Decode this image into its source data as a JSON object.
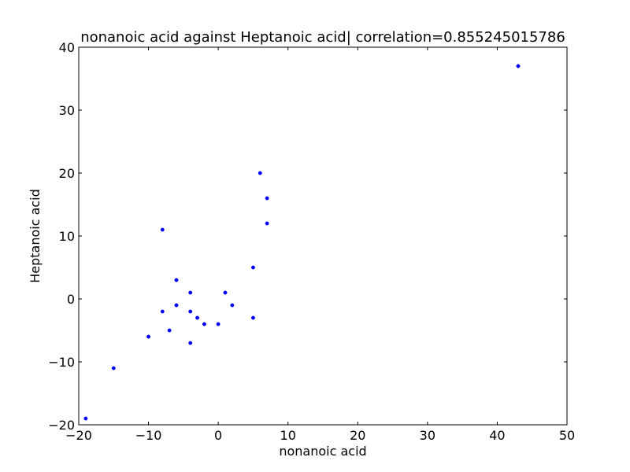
{
  "chart_data": {
    "type": "scatter",
    "title": "nonanoic acid against Heptanoic acid| correlation=0.855245015786",
    "xlabel": "nonanoic acid",
    "ylabel": "Heptanoic acid",
    "xlim": [
      -20,
      50
    ],
    "ylim": [
      -20,
      40
    ],
    "xticks": [
      -20,
      -10,
      0,
      10,
      20,
      30,
      40,
      50
    ],
    "yticks": [
      -20,
      -10,
      0,
      10,
      20,
      30,
      40
    ],
    "xtick_labels": [
      "−20",
      "−10",
      "0",
      "10",
      "20",
      "30",
      "40",
      "50"
    ],
    "ytick_labels": [
      "−20",
      "−10",
      "0",
      "10",
      "20",
      "30",
      "40"
    ],
    "grid": false,
    "marker_color": "#0000ff",
    "points": [
      {
        "x": -19,
        "y": -19
      },
      {
        "x": -15,
        "y": -11
      },
      {
        "x": -10,
        "y": -6
      },
      {
        "x": -8,
        "y": 11
      },
      {
        "x": -8,
        "y": -2
      },
      {
        "x": -7,
        "y": -5
      },
      {
        "x": -6,
        "y": 3
      },
      {
        "x": -6,
        "y": -1
      },
      {
        "x": -4,
        "y": 1
      },
      {
        "x": -4,
        "y": -2
      },
      {
        "x": -4,
        "y": -7
      },
      {
        "x": -3,
        "y": -3
      },
      {
        "x": -2,
        "y": -4
      },
      {
        "x": 0,
        "y": -4
      },
      {
        "x": 1,
        "y": 1
      },
      {
        "x": 2,
        "y": -1
      },
      {
        "x": 5,
        "y": 5
      },
      {
        "x": 5,
        "y": -3
      },
      {
        "x": 6,
        "y": 20
      },
      {
        "x": 7,
        "y": 16
      },
      {
        "x": 7,
        "y": 12
      },
      {
        "x": 43,
        "y": 37
      }
    ]
  }
}
